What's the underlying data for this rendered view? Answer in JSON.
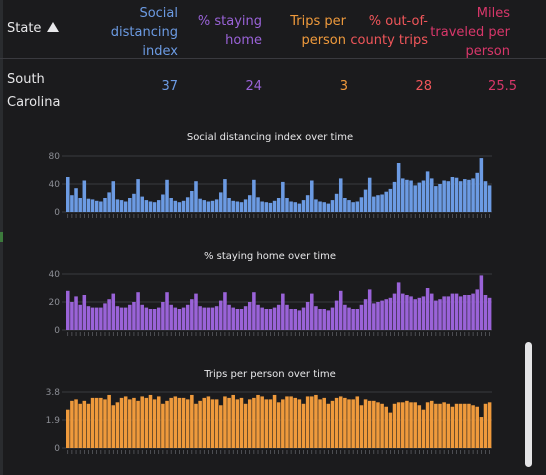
{
  "header": {
    "state": "State",
    "social_distancing": [
      "Social",
      "distancing",
      "index"
    ],
    "staying_home": [
      "% staying",
      "home"
    ],
    "trips": [
      "Trips per",
      "person"
    ],
    "out_of_county": [
      "% out-of-",
      "county trips"
    ],
    "miles": [
      "Miles",
      "traveled per",
      "person"
    ]
  },
  "row": {
    "state": "South Carolina",
    "social_distancing": "37",
    "staying_home": "24",
    "trips": "3",
    "out_of_county": "28",
    "miles": "25.5"
  },
  "colors": {
    "social_distancing": "#6c9be3",
    "staying_home": "#9a63d8",
    "trips": "#ef9a3c",
    "out_of_county": "#f0565a",
    "miles": "#d8376a"
  },
  "chart_data": [
    {
      "type": "bar",
      "title": "Social distancing index over time",
      "color": "#6c9be3",
      "ylim": [
        0,
        80
      ],
      "yticks": [
        "0",
        "40",
        "80"
      ],
      "values": [
        50,
        24,
        34,
        20,
        45,
        19,
        18,
        16,
        15,
        20,
        28,
        44,
        18,
        17,
        15,
        20,
        26,
        47,
        22,
        17,
        15,
        14,
        17,
        25,
        46,
        20,
        16,
        14,
        16,
        21,
        30,
        44,
        19,
        17,
        15,
        16,
        18,
        28,
        47,
        20,
        16,
        15,
        14,
        18,
        24,
        46,
        21,
        15,
        14,
        13,
        16,
        20,
        43,
        20,
        15,
        14,
        12,
        17,
        24,
        45,
        18,
        15,
        14,
        12,
        17,
        26,
        48,
        20,
        17,
        14,
        15,
        21,
        32,
        49,
        22,
        24,
        25,
        29,
        33,
        43,
        70,
        48,
        46,
        45,
        38,
        42,
        45,
        58,
        48,
        37,
        40,
        45,
        44,
        50,
        49,
        44,
        47,
        46,
        48,
        56,
        77,
        44,
        38
      ]
    },
    {
      "type": "bar",
      "title": "% staying home over time",
      "color": "#9a63d8",
      "ylim": [
        0,
        40
      ],
      "yticks": [
        "0",
        "20",
        "40"
      ],
      "values": [
        28,
        20,
        24,
        18,
        25,
        17,
        16,
        16,
        16,
        19,
        22,
        26,
        17,
        16,
        16,
        18,
        20,
        27,
        18,
        16,
        15,
        15,
        16,
        20,
        27,
        18,
        16,
        15,
        16,
        18,
        22,
        26,
        17,
        16,
        16,
        16,
        17,
        21,
        27,
        18,
        16,
        15,
        15,
        17,
        20,
        27,
        18,
        16,
        15,
        15,
        16,
        18,
        26,
        18,
        15,
        15,
        14,
        16,
        20,
        26,
        17,
        15,
        15,
        14,
        16,
        21,
        28,
        18,
        16,
        15,
        15,
        18,
        22,
        29,
        19,
        20,
        21,
        22,
        23,
        26,
        34,
        26,
        25,
        24,
        22,
        23,
        24,
        30,
        26,
        21,
        22,
        24,
        24,
        26,
        26,
        24,
        25,
        25,
        26,
        29,
        39,
        25,
        23
      ]
    },
    {
      "type": "bar",
      "title": "Trips per person over time",
      "color": "#ef9a3c",
      "ylim": [
        0,
        3.8
      ],
      "yticks": [
        "0",
        "1.9",
        "3.8"
      ],
      "values": [
        2.6,
        3.2,
        3.3,
        3.0,
        3.2,
        3.0,
        3.4,
        3.4,
        3.4,
        3.3,
        3.6,
        2.9,
        3.1,
        3.4,
        3.5,
        3.3,
        3.4,
        3.2,
        3.5,
        3.4,
        3.6,
        3.3,
        3.5,
        3.0,
        3.2,
        3.4,
        3.5,
        3.4,
        3.4,
        3.3,
        3.6,
        3.0,
        3.2,
        3.4,
        3.5,
        3.3,
        3.3,
        2.9,
        3.5,
        3.4,
        3.6,
        3.3,
        3.4,
        3.0,
        3.3,
        3.4,
        3.6,
        3.5,
        3.3,
        3.3,
        3.6,
        3.1,
        3.3,
        3.5,
        3.5,
        3.4,
        3.3,
        3.0,
        3.5,
        3.5,
        3.6,
        3.3,
        3.4,
        3.0,
        3.2,
        3.4,
        3.5,
        3.4,
        3.3,
        3.3,
        3.5,
        2.9,
        3.3,
        3.2,
        3.2,
        3.1,
        3.0,
        2.8,
        2.4,
        3.0,
        3.1,
        3.1,
        3.2,
        3.1,
        3.1,
        2.9,
        2.6,
        3.1,
        3.2,
        3.0,
        3.0,
        3.1,
        3.0,
        2.8,
        3.0,
        3.0,
        3.0,
        3.0,
        2.9,
        2.8,
        2.1,
        3.0,
        3.1
      ]
    }
  ]
}
